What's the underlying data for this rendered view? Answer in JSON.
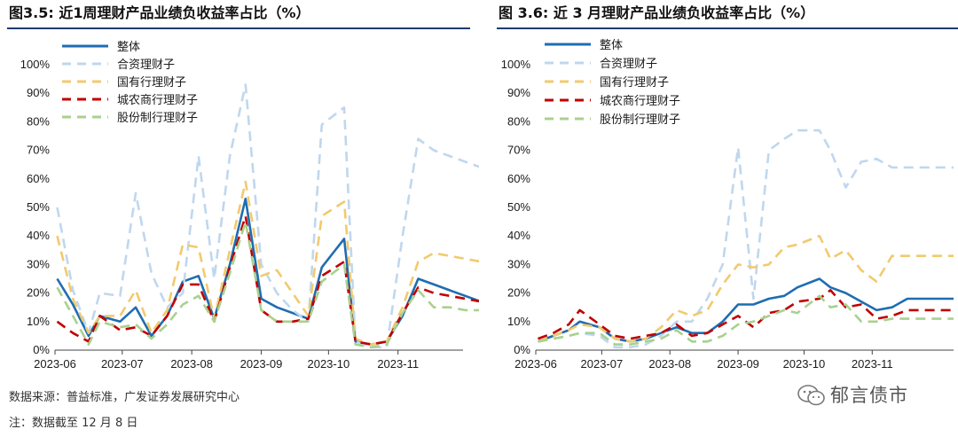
{
  "titles": {
    "left": "图3.5:  近1周理财产品业绩负收益率占比（%）",
    "right": "图 3.6:  近 3 月理财产品业绩负收益率占比（%）"
  },
  "footer": {
    "source": "数据来源：普益标准，广发证券发展研究中心",
    "note": "注：数据截至 12 月 8 日"
  },
  "watermark": {
    "text": "郁言债市",
    "icon": "wechat-icon"
  },
  "chart_data": [
    {
      "type": "line",
      "title": "近1周理财产品业绩负收益率占比（%）",
      "ylim": [
        0,
        100
      ],
      "yticks": [
        "0%",
        "10%",
        "20%",
        "30%",
        "40%",
        "50%",
        "60%",
        "70%",
        "80%",
        "90%",
        "100%"
      ],
      "xticks": [
        "2023-06",
        "2023-07",
        "2023-08",
        "2023-09",
        "2023-10",
        "2023-11"
      ],
      "x": [
        "2023-06-02",
        "2023-06-09",
        "2023-06-16",
        "2023-06-21",
        "2023-06-30",
        "2023-07-07",
        "2023-07-14",
        "2023-07-21",
        "2023-07-28",
        "2023-08-04",
        "2023-08-11",
        "2023-08-18",
        "2023-08-25",
        "2023-09-01",
        "2023-09-08",
        "2023-09-15",
        "2023-09-22",
        "2023-09-28",
        "2023-10-08",
        "2023-10-13",
        "2023-10-20",
        "2023-10-27",
        "2023-11-03",
        "2023-11-10",
        "2023-11-17",
        "2023-11-24",
        "2023-12-01",
        "2023-12-08"
      ],
      "legend_position": "top-left",
      "series": [
        {
          "name": "整体",
          "color": "#1f6db1",
          "dash": "solid",
          "values": [
            25,
            16,
            5,
            12,
            10,
            15,
            5,
            12,
            24,
            26,
            11,
            30,
            53,
            18,
            15,
            13,
            11,
            29,
            39,
            3,
            2,
            3,
            12,
            25,
            23,
            21,
            19,
            17
          ]
        },
        {
          "name": "合资理财子",
          "color": "#bfd7ee",
          "dash": "dash",
          "values": [
            50,
            21,
            6,
            20,
            19,
            55,
            27,
            15,
            20,
            68,
            25,
            68,
            93,
            30,
            20,
            14,
            10,
            79,
            85,
            3,
            1,
            1,
            40,
            74,
            70,
            68,
            66,
            64
          ]
        },
        {
          "name": "国有行理财子",
          "color": "#f1ca6e",
          "dash": "dash",
          "values": [
            40,
            18,
            6,
            12,
            12,
            21,
            6,
            14,
            37,
            36,
            11,
            35,
            59,
            26,
            28,
            20,
            12,
            47,
            52,
            4,
            2,
            3,
            15,
            31,
            34,
            33,
            32,
            31
          ]
        },
        {
          "name": "城农商行理财子",
          "color": "#c00000",
          "dash": "dash",
          "values": [
            10,
            6,
            3,
            12,
            7,
            8,
            5,
            12,
            23,
            23,
            10,
            29,
            47,
            14,
            10,
            10,
            11,
            26,
            31,
            3,
            2,
            3,
            13,
            22,
            20,
            19,
            18,
            17
          ]
        },
        {
          "name": "股份制行理财子",
          "color": "#a9d18e",
          "dash": "dash",
          "values": [
            22,
            12,
            2,
            10,
            8,
            9,
            4,
            9,
            16,
            19,
            10,
            27,
            45,
            14,
            10,
            10,
            10,
            24,
            30,
            2,
            1,
            2,
            13,
            21,
            15,
            15,
            14,
            14
          ]
        }
      ]
    },
    {
      "type": "line",
      "title": "近 3 月理财产品业绩负收益率占比（%）",
      "ylim": [
        0,
        100
      ],
      "yticks": [
        "0%",
        "10%",
        "20%",
        "30%",
        "40%",
        "50%",
        "60%",
        "70%",
        "80%",
        "90%",
        "100%"
      ],
      "xticks": [
        "2023-06",
        "2023-07",
        "2023-08",
        "2023-09",
        "2023-10",
        "2023-11"
      ],
      "x": [
        "2023-06-02",
        "2023-06-09",
        "2023-06-16",
        "2023-06-21",
        "2023-06-30",
        "2023-07-07",
        "2023-07-14",
        "2023-07-21",
        "2023-07-28",
        "2023-08-04",
        "2023-08-11",
        "2023-08-18",
        "2023-08-25",
        "2023-09-01",
        "2023-09-08",
        "2023-09-15",
        "2023-09-22",
        "2023-09-28",
        "2023-10-08",
        "2023-10-13",
        "2023-10-20",
        "2023-10-27",
        "2023-11-03",
        "2023-11-10",
        "2023-11-17",
        "2023-11-24",
        "2023-12-01",
        "2023-12-08"
      ],
      "legend_position": "top-left",
      "series": [
        {
          "name": "整体",
          "color": "#1f6db1",
          "dash": "solid",
          "values": [
            3,
            5,
            7,
            10,
            8,
            4,
            3,
            4,
            6,
            8,
            6,
            6,
            10,
            16,
            16,
            18,
            19,
            22,
            25,
            22,
            20,
            17,
            14,
            15,
            18,
            18,
            18,
            18
          ]
        },
        {
          "name": "合资理财子",
          "color": "#bfd7ee",
          "dash": "dash",
          "values": [
            3,
            4,
            5,
            6,
            5,
            1,
            1,
            2,
            5,
            10,
            10,
            18,
            30,
            71,
            18,
            70,
            74,
            77,
            77,
            70,
            57,
            66,
            67,
            64,
            64,
            64,
            64,
            64
          ]
        },
        {
          "name": "国有行理财子",
          "color": "#f1ca6e",
          "dash": "dash",
          "values": [
            3,
            5,
            7,
            9,
            8,
            4,
            3,
            4,
            8,
            14,
            12,
            14,
            23,
            30,
            29,
            30,
            36,
            37,
            40,
            32,
            35,
            28,
            24,
            33,
            33,
            33,
            33,
            33
          ]
        },
        {
          "name": "城农商行理财子",
          "color": "#c00000",
          "dash": "dash",
          "values": [
            4,
            6,
            9,
            14,
            9,
            5,
            4,
            5,
            6,
            9,
            5,
            6,
            9,
            12,
            8,
            13,
            14,
            17,
            18,
            21,
            15,
            16,
            11,
            12,
            14,
            14,
            14,
            14
          ]
        },
        {
          "name": "股份制行理财子",
          "color": "#a9d18e",
          "dash": "dash",
          "values": [
            3,
            4,
            5,
            6,
            6,
            2,
            2,
            3,
            4,
            7,
            3,
            3,
            5,
            9,
            10,
            12,
            14,
            13,
            19,
            15,
            16,
            10,
            10,
            11,
            11,
            11,
            11,
            11
          ]
        }
      ]
    }
  ]
}
